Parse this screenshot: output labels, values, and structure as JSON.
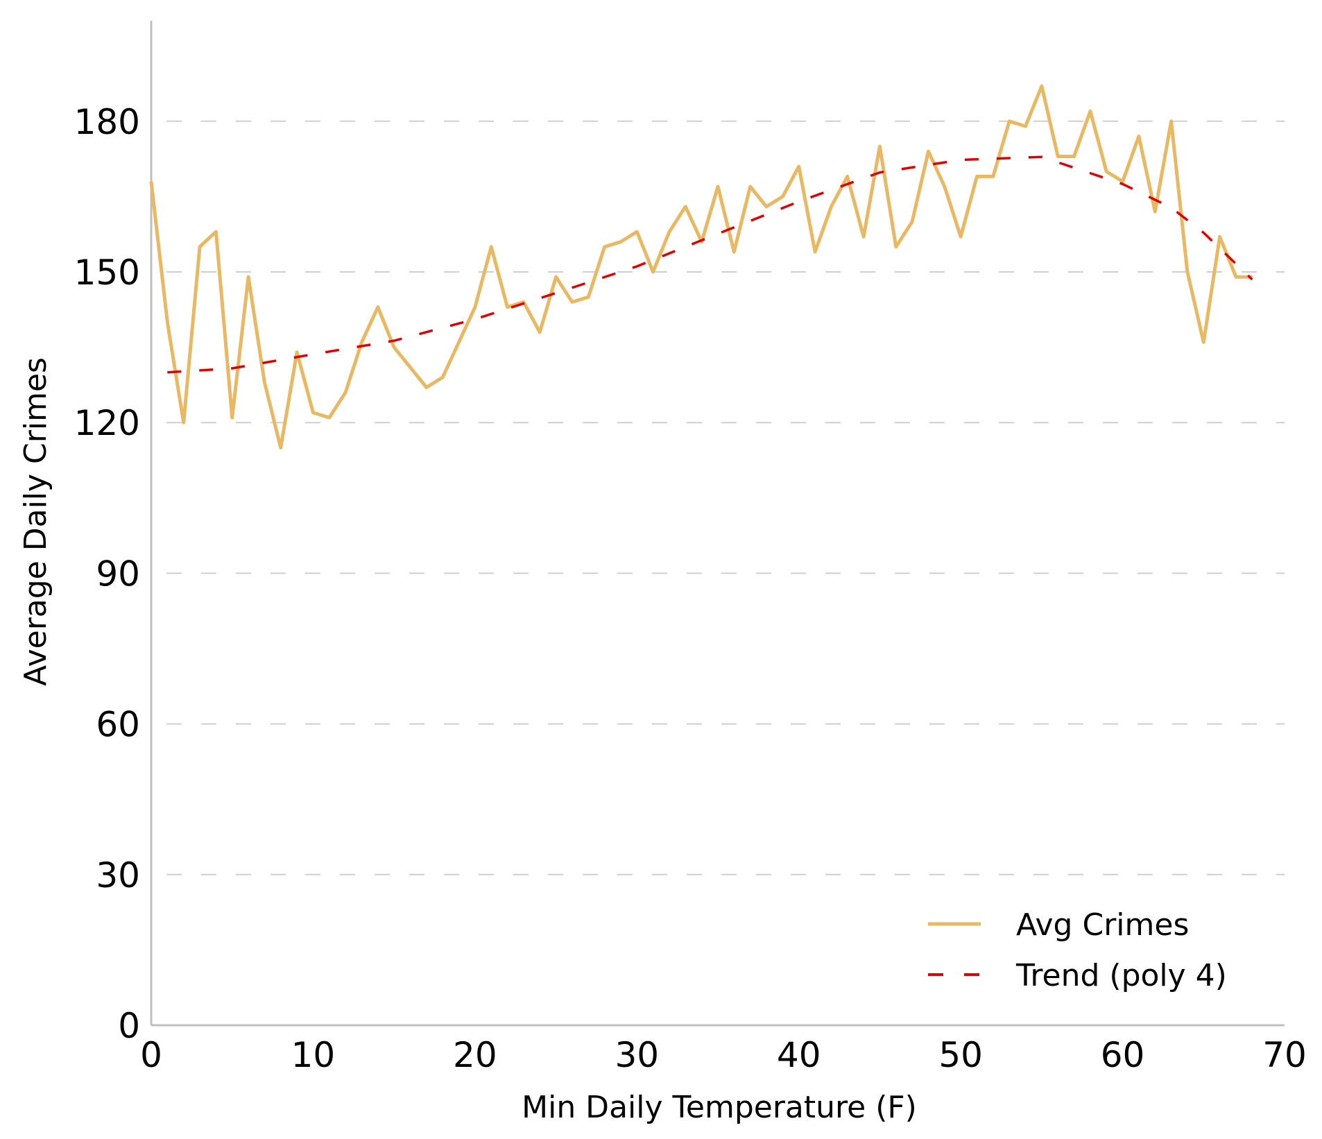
{
  "chart_data": {
    "type": "line",
    "title": "",
    "xlabel": "Min Daily Temperature (F)",
    "ylabel": "Average Daily Crimes",
    "xlim": [
      0,
      70
    ],
    "ylim": [
      0,
      200
    ],
    "xticks": [
      0,
      10,
      20,
      30,
      40,
      50,
      60,
      70
    ],
    "yticks": [
      0,
      30,
      60,
      90,
      120,
      150,
      180
    ],
    "grid": "horizontal-dashed",
    "legend": "bottom-right",
    "series": [
      {
        "name": "Avg Crimes",
        "style": "solid",
        "color": "#e8b863",
        "x": [
          0,
          1,
          2,
          3,
          4,
          5,
          6,
          7,
          8,
          9,
          10,
          11,
          12,
          13,
          14,
          15,
          16,
          17,
          18,
          19,
          20,
          21,
          22,
          23,
          24,
          25,
          26,
          27,
          28,
          29,
          30,
          31,
          32,
          33,
          34,
          35,
          36,
          37,
          38,
          39,
          40,
          41,
          42,
          43,
          44,
          45,
          46,
          47,
          48,
          49,
          50,
          51,
          52,
          53,
          54,
          55,
          56,
          57,
          58,
          59,
          60,
          61,
          62,
          63,
          64,
          65,
          66,
          67,
          68
        ],
        "y": [
          168,
          140,
          120,
          155,
          158,
          121,
          149,
          128,
          115,
          134,
          122,
          121,
          126,
          136,
          143,
          135,
          131,
          127,
          129,
          136,
          143,
          155,
          143,
          144,
          138,
          149,
          144,
          145,
          155,
          156,
          158,
          150,
          158,
          163,
          156,
          167,
          154,
          167,
          163,
          165,
          171,
          154,
          163,
          169,
          157,
          175,
          155,
          160,
          174,
          167,
          157,
          169,
          169,
          180,
          179,
          187,
          173,
          173,
          182,
          170,
          168,
          177,
          162,
          180,
          150,
          136,
          157,
          149,
          149
        ]
      },
      {
        "name": "Trend (poly 4)",
        "style": "dashed",
        "color": "#e00000",
        "x": [
          1,
          5,
          10,
          15,
          20,
          25,
          30,
          35,
          40,
          45,
          50,
          55,
          60,
          63,
          65,
          68
        ],
        "y": [
          130,
          130.8,
          133.6,
          136.3,
          140.6,
          145.8,
          151.1,
          157.6,
          164,
          169.8,
          172.3,
          172.9,
          167.5,
          162.8,
          157.8,
          148.5
        ]
      }
    ]
  }
}
